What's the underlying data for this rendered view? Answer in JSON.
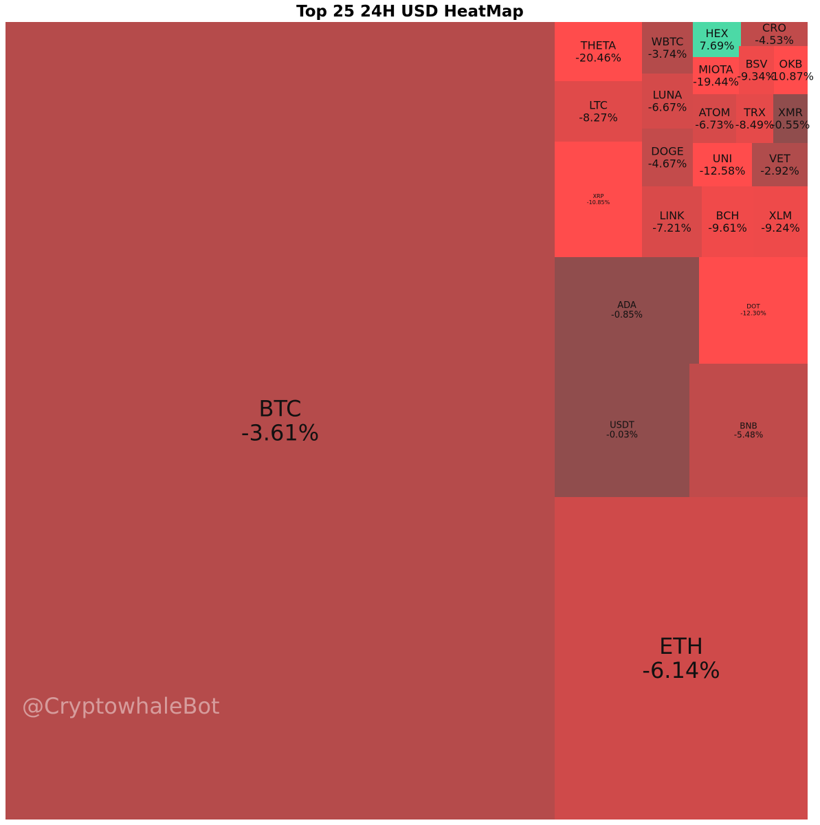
{
  "chart_data": {
    "type": "heatmap",
    "title": "Top 25 24H USD HeatMap",
    "tiles": [
      {
        "symbol": "BTC",
        "change": "-3.61%",
        "value": -3.61,
        "color": "#b54b4b"
      },
      {
        "symbol": "ETH",
        "change": "-6.14%",
        "value": -6.14,
        "color": "#cf4a4a"
      },
      {
        "symbol": "USDT",
        "change": "-0.03%",
        "value": -0.03,
        "color": "#904d4d"
      },
      {
        "symbol": "BNB",
        "change": "-5.48%",
        "value": -5.48,
        "color": "#c04b4b"
      },
      {
        "symbol": "ADA",
        "change": "-0.85%",
        "value": -0.85,
        "color": "#904d4d"
      },
      {
        "symbol": "DOT",
        "change": "-12.30%",
        "value": -12.3,
        "color": "#ff4c4c"
      },
      {
        "symbol": "XRP",
        "change": "-10.85%",
        "value": -10.85,
        "color": "#ff4c4c"
      },
      {
        "symbol": "LINK",
        "change": "-7.21%",
        "value": -7.21,
        "color": "#d94a4a"
      },
      {
        "symbol": "BCH",
        "change": "-9.61%",
        "value": -9.61,
        "color": "#f04a4a"
      },
      {
        "symbol": "XLM",
        "change": "-9.24%",
        "value": -9.24,
        "color": "#ee4a4a"
      },
      {
        "symbol": "LTC",
        "change": "-8.27%",
        "value": -8.27,
        "color": "#e04a4a"
      },
      {
        "symbol": "DOGE",
        "change": "-4.67%",
        "value": -4.67,
        "color": "#c34b4b"
      },
      {
        "symbol": "UNI",
        "change": "-12.58%",
        "value": -12.58,
        "color": "#ff4c4c"
      },
      {
        "symbol": "VET",
        "change": "-2.92%",
        "value": -2.92,
        "color": "#b04c4c"
      },
      {
        "symbol": "THETA",
        "change": "-20.46%",
        "value": -20.46,
        "color": "#ff4c4c"
      },
      {
        "symbol": "LUNA",
        "change": "-6.67%",
        "value": -6.67,
        "color": "#d44a4a"
      },
      {
        "symbol": "ATOM",
        "change": "-6.73%",
        "value": -6.73,
        "color": "#d64a4a"
      },
      {
        "symbol": "TRX",
        "change": "-8.49%",
        "value": -8.49,
        "color": "#e54a4a"
      },
      {
        "symbol": "XMR",
        "change": "-0.55%",
        "value": -0.55,
        "color": "#904d4d"
      },
      {
        "symbol": "WBTC",
        "change": "-3.74%",
        "value": -3.74,
        "color": "#b44b4b"
      },
      {
        "symbol": "MIOTA",
        "change": "-19.44%",
        "value": -19.44,
        "color": "#ff4c4c"
      },
      {
        "symbol": "HEX",
        "change": "7.69%",
        "value": 7.69,
        "color": "#4cd9a6"
      },
      {
        "symbol": "BSV",
        "change": "-9.34%",
        "value": -9.34,
        "color": "#ef4a4a"
      },
      {
        "symbol": "OKB",
        "change": "-10.87%",
        "value": -10.87,
        "color": "#ff4c4c"
      },
      {
        "symbol": "CRO",
        "change": "-4.53%",
        "value": -4.53,
        "color": "#c04b4b"
      }
    ]
  },
  "watermark": "@CryptowhaleBot"
}
